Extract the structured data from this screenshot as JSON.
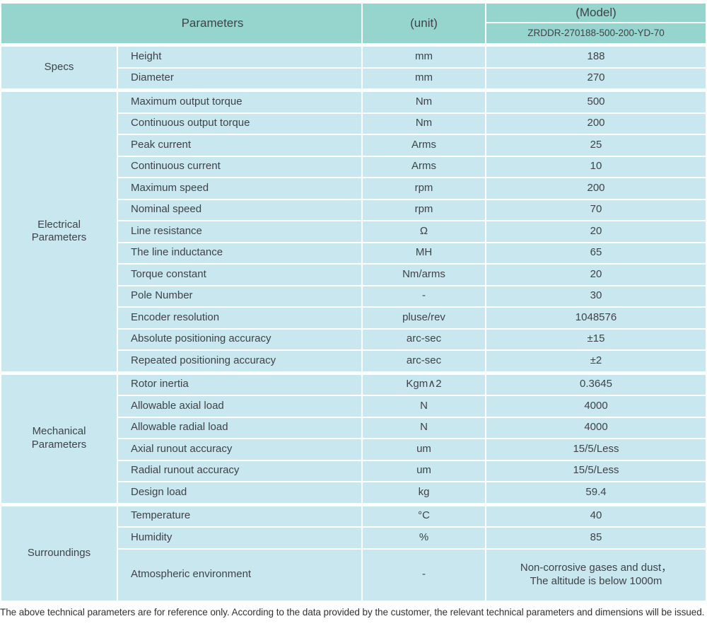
{
  "header": {
    "parameters_label": "Parameters",
    "unit_label": "(unit)",
    "model_label": "(Model)",
    "model_value": "ZRDDR-270188-500-200-YD-70"
  },
  "sections": [
    {
      "group": "Specs",
      "rows": [
        {
          "param": "Height",
          "unit": "mm",
          "value": "188"
        },
        {
          "param": "Diameter",
          "unit": "mm",
          "value": "270"
        }
      ]
    },
    {
      "group": "Electrical\nParameters",
      "rows": [
        {
          "param": "Maximum output torque",
          "unit": "Nm",
          "value": "500"
        },
        {
          "param": "Continuous output torque",
          "unit": "Nm",
          "value": "200"
        },
        {
          "param": "Peak current",
          "unit": "Arms",
          "value": "25"
        },
        {
          "param": "Continuous current",
          "unit": "Arms",
          "value": "10"
        },
        {
          "param": "Maximum speed",
          "unit": "rpm",
          "value": "200"
        },
        {
          "param": "Nominal speed",
          "unit": "rpm",
          "value": "70"
        },
        {
          "param": "Line resistance",
          "unit": "Ω",
          "value": "20"
        },
        {
          "param": "The line inductance",
          "unit": "MH",
          "value": "65"
        },
        {
          "param": "Torque constant",
          "unit": "Nm/arms",
          "value": "20"
        },
        {
          "param": "Pole Number",
          "unit": "-",
          "value": "30"
        },
        {
          "param": "Encoder resolution",
          "unit": "pluse/rev",
          "value": "1048576"
        },
        {
          "param": "Absolute positioning accuracy",
          "unit": "arc-sec",
          "value": "±15"
        },
        {
          "param": "Repeated positioning accuracy",
          "unit": "arc-sec",
          "value": "±2"
        }
      ]
    },
    {
      "group": "Mechanical\nParameters",
      "rows": [
        {
          "param": "Rotor inertia",
          "unit": "Kgm∧2",
          "value": "0.3645"
        },
        {
          "param": "Allowable axial load",
          "unit": "N",
          "value": "4000"
        },
        {
          "param": "Allowable radial load",
          "unit": "N",
          "value": "4000"
        },
        {
          "param": "Axial runout accuracy",
          "unit": "um",
          "value": "15/5/Less"
        },
        {
          "param": "Radial runout accuracy",
          "unit": "um",
          "value": "15/5/Less"
        },
        {
          "param": "Design load",
          "unit": "kg",
          "value": "59.4"
        }
      ]
    },
    {
      "group": "Surroundings",
      "rows": [
        {
          "param": "Temperature",
          "unit": "°C",
          "value": "40"
        },
        {
          "param": "Humidity",
          "unit": "%",
          "value": "85"
        },
        {
          "param": "Atmospheric environment",
          "unit": "-",
          "value": "Non-corrosive gases and dust，\nThe altitude is below 1000m"
        }
      ]
    }
  ],
  "footer": {
    "note": "The above technical parameters are for reference only. According to the data provided by the customer, the relevant technical parameters and dimensions will be issued."
  },
  "colors": {
    "header_bg": "#96d5cd",
    "cell_bg": "#c9e7ef",
    "text": "#3f4347"
  }
}
